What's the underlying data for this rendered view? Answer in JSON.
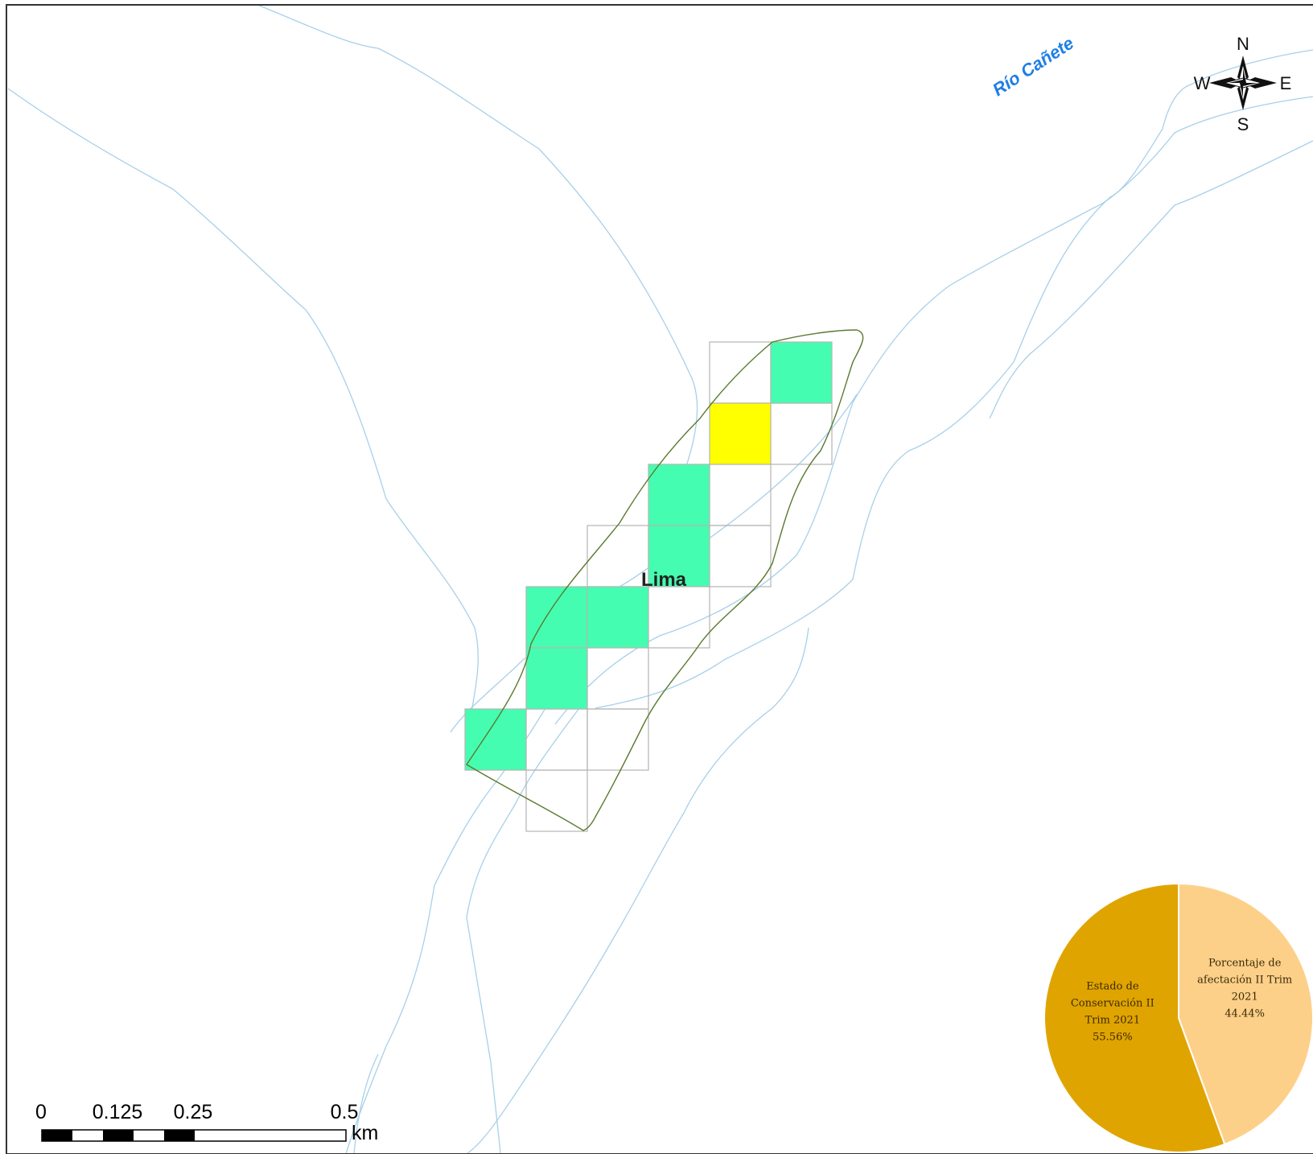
{
  "map": {
    "river_label": "Río Cañete",
    "place_label": "Lima",
    "colors": {
      "water": "#a8d0ea",
      "cell_conserved": "#45fdb0",
      "cell_affected": "#ffff00",
      "cell_outline": "#b5b5b5",
      "boundary": "#5a7a30",
      "frame": "#333333"
    },
    "grid_cells": [
      {
        "status": "outline"
      },
      {
        "status": "conserved"
      },
      {
        "status": "affected"
      },
      {
        "status": "outline"
      },
      {
        "status": "conserved"
      },
      {
        "status": "outline"
      },
      {
        "status": "outline"
      },
      {
        "status": "conserved"
      },
      {
        "status": "outline"
      },
      {
        "status": "conserved"
      },
      {
        "status": "conserved"
      },
      {
        "status": "outline"
      },
      {
        "status": "conserved"
      },
      {
        "status": "outline"
      },
      {
        "status": "conserved"
      },
      {
        "status": "outline"
      },
      {
        "status": "outline"
      },
      {
        "status": "outline"
      }
    ]
  },
  "compass": {
    "north": "N",
    "south": "S",
    "east": "E",
    "west": "W"
  },
  "scale_bar": {
    "labels": [
      "0",
      "0.125",
      "0.25",
      "0.5"
    ],
    "unit": "km"
  },
  "chart_data": {
    "type": "pie",
    "slices": [
      {
        "label_lines": [
          "Porcentaje de",
          "afectación II Trim",
          "2021",
          "44.44%"
        ],
        "value": 44.44,
        "color": "#fdd08a"
      },
      {
        "label_lines": [
          "Estado de",
          "Conservación II",
          "Trim 2021",
          "55.56%"
        ],
        "value": 55.56,
        "color": "#e0a400"
      }
    ]
  }
}
